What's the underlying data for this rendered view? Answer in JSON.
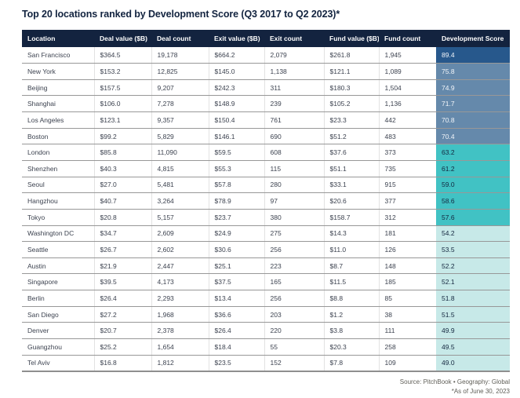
{
  "title": "Top 20 locations ranked by Development Score (Q3 2017 to Q2 2023)*",
  "table": {
    "columns": [
      "Location",
      "Deal value ($B)",
      "Deal count",
      "Exit value ($B)",
      "Exit count",
      "Fund value ($B)",
      "Fund count",
      "Development Score"
    ],
    "rows": [
      {
        "location": "San Francisco",
        "deal_value": "$364.5",
        "deal_count": "19,178",
        "exit_value": "$664.2",
        "exit_count": "2,079",
        "fund_value": "$261.8",
        "fund_count": "1,945",
        "score": "89.4",
        "tier": 1
      },
      {
        "location": "New York",
        "deal_value": "$153.2",
        "deal_count": "12,825",
        "exit_value": "$145.0",
        "exit_count": "1,138",
        "fund_value": "$121.1",
        "fund_count": "1,089",
        "score": "75.8",
        "tier": 2
      },
      {
        "location": "Beijing",
        "deal_value": "$157.5",
        "deal_count": "9,207",
        "exit_value": "$242.3",
        "exit_count": "311",
        "fund_value": "$180.3",
        "fund_count": "1,504",
        "score": "74.9",
        "tier": 2
      },
      {
        "location": "Shanghai",
        "deal_value": "$106.0",
        "deal_count": "7,278",
        "exit_value": "$148.9",
        "exit_count": "239",
        "fund_value": "$105.2",
        "fund_count": "1,136",
        "score": "71.7",
        "tier": 2
      },
      {
        "location": "Los Angeles",
        "deal_value": "$123.1",
        "deal_count": "9,357",
        "exit_value": "$150.4",
        "exit_count": "761",
        "fund_value": "$23.3",
        "fund_count": "442",
        "score": "70.8",
        "tier": 2
      },
      {
        "location": "Boston",
        "deal_value": "$99.2",
        "deal_count": "5,829",
        "exit_value": "$146.1",
        "exit_count": "690",
        "fund_value": "$51.2",
        "fund_count": "483",
        "score": "70.4",
        "tier": 2
      },
      {
        "location": "London",
        "deal_value": "$85.8",
        "deal_count": "11,090",
        "exit_value": "$59.5",
        "exit_count": "608",
        "fund_value": "$37.6",
        "fund_count": "373",
        "score": "63.2",
        "tier": 3
      },
      {
        "location": "Shenzhen",
        "deal_value": "$40.3",
        "deal_count": "4,815",
        "exit_value": "$55.3",
        "exit_count": "115",
        "fund_value": "$51.1",
        "fund_count": "735",
        "score": "61.2",
        "tier": 3
      },
      {
        "location": "Seoul",
        "deal_value": "$27.0",
        "deal_count": "5,481",
        "exit_value": "$57.8",
        "exit_count": "280",
        "fund_value": "$33.1",
        "fund_count": "915",
        "score": "59.0",
        "tier": 3
      },
      {
        "location": "Hangzhou",
        "deal_value": "$40.7",
        "deal_count": "3,264",
        "exit_value": "$78.9",
        "exit_count": "97",
        "fund_value": "$20.6",
        "fund_count": "377",
        "score": "58.6",
        "tier": 3
      },
      {
        "location": "Tokyo",
        "deal_value": "$20.8",
        "deal_count": "5,157",
        "exit_value": "$23.7",
        "exit_count": "380",
        "fund_value": "$158.7",
        "fund_count": "312",
        "score": "57.6",
        "tier": 3
      },
      {
        "location": "Washington DC",
        "deal_value": "$34.7",
        "deal_count": "2,609",
        "exit_value": "$24.9",
        "exit_count": "275",
        "fund_value": "$14.3",
        "fund_count": "181",
        "score": "54.2",
        "tier": 4
      },
      {
        "location": "Seattle",
        "deal_value": "$26.7",
        "deal_count": "2,602",
        "exit_value": "$30.6",
        "exit_count": "256",
        "fund_value": "$11.0",
        "fund_count": "126",
        "score": "53.5",
        "tier": 4
      },
      {
        "location": "Austin",
        "deal_value": "$21.9",
        "deal_count": "2,447",
        "exit_value": "$25.1",
        "exit_count": "223",
        "fund_value": "$8.7",
        "fund_count": "148",
        "score": "52.2",
        "tier": 4
      },
      {
        "location": "Singapore",
        "deal_value": "$39.5",
        "deal_count": "4,173",
        "exit_value": "$37.5",
        "exit_count": "165",
        "fund_value": "$11.5",
        "fund_count": "185",
        "score": "52.1",
        "tier": 4
      },
      {
        "location": "Berlin",
        "deal_value": "$26.4",
        "deal_count": "2,293",
        "exit_value": "$13.4",
        "exit_count": "256",
        "fund_value": "$8.8",
        "fund_count": "85",
        "score": "51.8",
        "tier": 4
      },
      {
        "location": "San Diego",
        "deal_value": "$27.2",
        "deal_count": "1,968",
        "exit_value": "$36.6",
        "exit_count": "203",
        "fund_value": "$1.2",
        "fund_count": "38",
        "score": "51.5",
        "tier": 4
      },
      {
        "location": "Denver",
        "deal_value": "$20.7",
        "deal_count": "2,378",
        "exit_value": "$26.4",
        "exit_count": "220",
        "fund_value": "$3.8",
        "fund_count": "111",
        "score": "49.9",
        "tier": 4
      },
      {
        "location": "Guangzhou",
        "deal_value": "$25.2",
        "deal_count": "1,654",
        "exit_value": "$18.4",
        "exit_count": "55",
        "fund_value": "$20.3",
        "fund_count": "258",
        "score": "49.5",
        "tier": 4
      },
      {
        "location": "Tel Aviv",
        "deal_value": "$16.8",
        "deal_count": "1,812",
        "exit_value": "$23.5",
        "exit_count": "152",
        "fund_value": "$7.8",
        "fund_count": "109",
        "score": "49.0",
        "tier": 4
      }
    ]
  },
  "footer": {
    "source_line": "Source: PitchBook • Geography: Global",
    "as_of_line": "*As of June 30, 2023"
  },
  "colors": {
    "header_bg": "#13233f",
    "score_tier1": "#27588c",
    "score_tier2": "#6589ab",
    "score_tier3": "#41c2c4",
    "score_tier4": "#c7e9e8",
    "row_divider": "#989898",
    "body_text": "#3d4350"
  }
}
